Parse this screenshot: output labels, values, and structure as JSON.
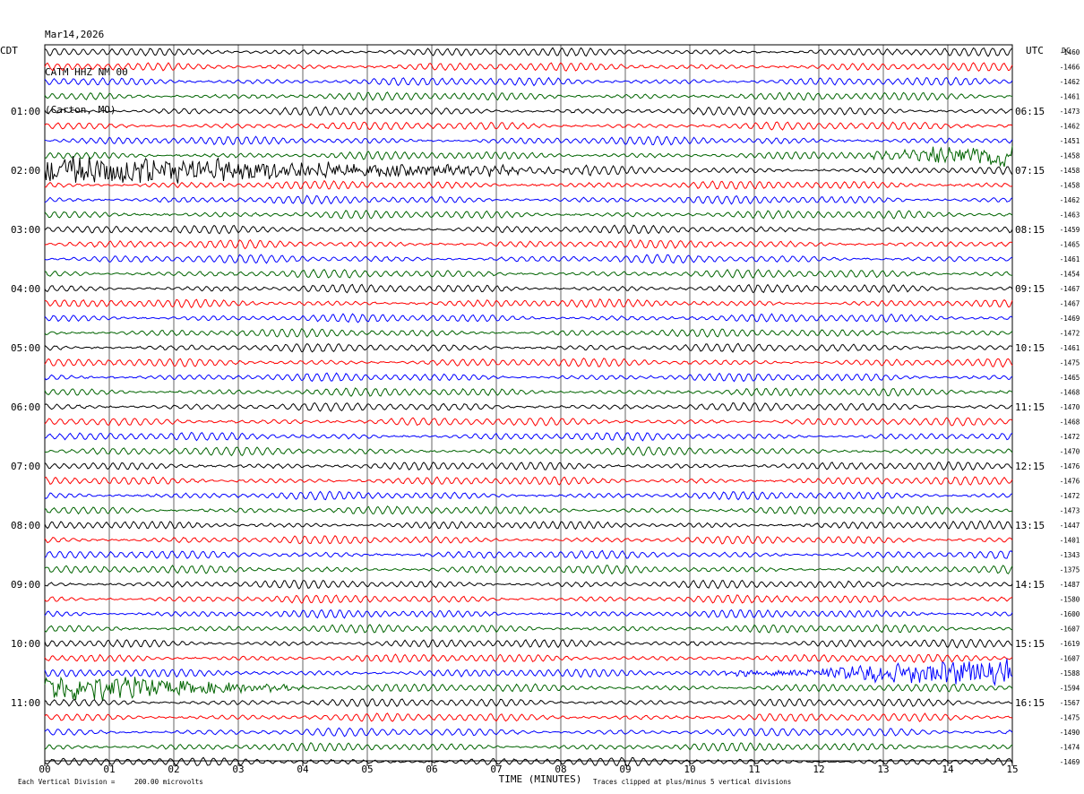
{
  "header": {
    "date": "Mar14,2026",
    "station": "CATM HHZ NM 00",
    "location": "(Carton, MO)"
  },
  "chart_data": {
    "type": "line",
    "left_axis_label": "CDT",
    "right_axis_label": "UTC",
    "dc_label": "DC",
    "xlabel": "TIME (MINUTES)",
    "x_ticks": [
      "00",
      "01",
      "02",
      "03",
      "04",
      "05",
      "06",
      "07",
      "08",
      "09",
      "10",
      "11",
      "12",
      "13",
      "14",
      "15"
    ],
    "xlim": [
      0,
      15
    ],
    "trace_colors": [
      "#000000",
      "#ff0000",
      "#0000ff",
      "#006400"
    ],
    "left_time_labels": [
      "01:00",
      "02:00",
      "03:00",
      "04:00",
      "05:00",
      "06:00",
      "07:00",
      "08:00",
      "09:00",
      "10:00",
      "11:00"
    ],
    "right_time_labels": [
      "06:15",
      "07:15",
      "08:15",
      "09:15",
      "10:15",
      "11:15",
      "12:15",
      "13:15",
      "14:15",
      "15:15",
      "16:15"
    ],
    "dc_offsets": [
      "-1460",
      "-1466",
      "-1462",
      "-1461",
      "-1473",
      "-1462",
      "-1451",
      "-1458",
      "-1458",
      "-1458",
      "-1462",
      "-1463",
      "-1459",
      "-1465",
      "-1461",
      "-1454",
      "-1467",
      "-1467",
      "-1469",
      "-1472",
      "-1461",
      "-1475",
      "-1465",
      "-1468",
      "-1470",
      "-1468",
      "-1472",
      "-1470",
      "-1476",
      "-1476",
      "-1472",
      "-1473",
      "-1447",
      "-1401",
      "-1343",
      "-1375",
      "-1487",
      "-1580",
      "-1600",
      "-1607",
      "-1619",
      "-1607",
      "-1588",
      "-1594",
      "-1567",
      "-1475",
      "-1490",
      "-1474",
      "-1469"
    ],
    "trace_count": 49,
    "events": [
      {
        "trace": 7,
        "start_min": 12.8,
        "end_min": 15,
        "amplitude": "strong"
      },
      {
        "trace": 8,
        "start_min": 0,
        "end_min": 8.5,
        "amplitude": "strong"
      },
      {
        "trace": 42,
        "start_min": 10.5,
        "end_min": 15,
        "amplitude": "strong"
      },
      {
        "trace": 43,
        "start_min": 0,
        "end_min": 4.0,
        "amplitude": "strong"
      }
    ],
    "footer": {
      "division_label": "Each Vertical Division =",
      "division_value": "200.00 microvolts",
      "clip_note": "Traces clipped at plus/minus 5 vertical divisions"
    }
  }
}
